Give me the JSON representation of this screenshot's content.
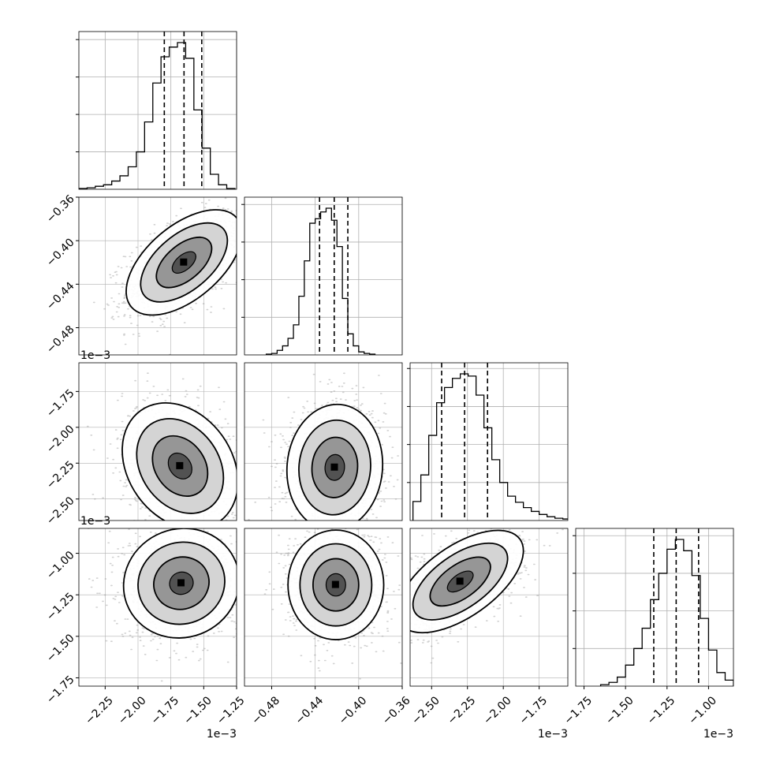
{
  "chart_data": {
    "type": "corner",
    "grid": true,
    "colors": {
      "hist_line": "#000000",
      "contour": "#000000",
      "quantile": "#000000",
      "grid": "#b0b0b0",
      "frame": "#000000",
      "points": "#9a9a9a"
    },
    "params": [
      {
        "range": [
          -2.45,
          -1.25
        ],
        "ticks": [
          -2.25,
          -2.0,
          -1.75,
          -1.5,
          -1.25
        ],
        "tick_labels": [
          "−2.25",
          "−2.00",
          "−1.75",
          "−1.50",
          "−1.25"
        ],
        "offset_label": "1e−3",
        "quantiles": [
          -1.8,
          -1.65,
          -1.515
        ],
        "hist_edges": [
          -2.45,
          -2.3875,
          -2.325,
          -2.2625,
          -2.2,
          -2.1375,
          -2.075,
          -2.0125,
          -1.95,
          -1.8875,
          -1.825,
          -1.7625,
          -1.7,
          -1.6375,
          -1.575,
          -1.5125,
          -1.45,
          -1.3875,
          -1.325,
          -1.2625
        ],
        "hist_counts": [
          1,
          2,
          4,
          6,
          11,
          18,
          30,
          50,
          90,
          142,
          177,
          190,
          196,
          175,
          106,
          55,
          20,
          6,
          1
        ]
      },
      {
        "range": [
          -0.505,
          -0.36
        ],
        "ticks": [
          -0.48,
          -0.44,
          -0.4,
          -0.36
        ],
        "tick_labels": [
          "−0.48",
          "−0.44",
          "−0.40",
          "−0.36"
        ],
        "offset_label": "",
        "quantiles": [
          -0.436,
          -0.4225,
          -0.41
        ],
        "hist_edges": [
          -0.485,
          -0.48,
          -0.475,
          -0.47,
          -0.465,
          -0.46,
          -0.455,
          -0.45,
          -0.445,
          -0.44,
          -0.435,
          -0.43,
          -0.425,
          -0.42,
          -0.415,
          -0.41,
          -0.405,
          -0.4,
          -0.395,
          -0.39,
          -0.385
        ],
        "hist_counts": [
          1,
          2,
          6,
          12,
          22,
          40,
          78,
          125,
          175,
          181,
          190,
          195,
          179,
          144,
          75,
          28,
          12,
          4,
          2,
          1
        ]
      },
      {
        "range": [
          -2.65,
          -1.55
        ],
        "ticks": [
          -2.5,
          -2.25,
          -2.0,
          -1.75
        ],
        "tick_labels": [
          "−2.50",
          "−2.25",
          "−2.00",
          "−1.75"
        ],
        "offset_label": "1e−3",
        "quantiles": [
          -2.43,
          -2.27,
          -2.11
        ],
        "hist_edges": [
          -2.63,
          -2.575,
          -2.52,
          -2.465,
          -2.41,
          -2.355,
          -2.3,
          -2.245,
          -2.19,
          -2.135,
          -2.08,
          -2.025,
          -1.97,
          -1.915,
          -1.86,
          -1.805,
          -1.75,
          -1.695,
          -1.64,
          -1.585,
          -1.53
        ],
        "hist_counts": [
          25,
          60,
          112,
          155,
          175,
          187,
          193,
          190,
          165,
          122,
          80,
          50,
          32,
          24,
          17,
          12,
          8,
          5,
          3,
          2
        ]
      },
      {
        "range": [
          -1.8,
          -0.85
        ],
        "ticks": [
          -1.75,
          -1.5,
          -1.25,
          -1.0
        ],
        "tick_labels": [
          "−1.75",
          "−1.50",
          "−1.25",
          "−1.00"
        ],
        "offset_label": "1e−3",
        "quantiles": [
          -1.33,
          -1.195,
          -1.06
        ],
        "hist_edges": [
          -1.65,
          -1.6,
          -1.55,
          -1.5,
          -1.45,
          -1.4,
          -1.35,
          -1.3,
          -1.25,
          -1.2,
          -1.15,
          -1.1,
          -1.05,
          -1.0,
          -0.95,
          -0.9,
          -0.85
        ],
        "hist_counts": [
          2,
          5,
          12,
          28,
          50,
          77,
          115,
          150,
          182,
          195,
          180,
          147,
          90,
          48,
          18,
          8
        ]
      }
    ],
    "pairs": [
      {
        "x": 0,
        "y": 1,
        "mean": [
          -1.65,
          -0.42
        ],
        "sd": [
          0.2,
          0.022
        ],
        "corr": 0.55
      },
      {
        "x": 0,
        "y": 2,
        "mean": [
          -1.68,
          -2.27
        ],
        "sd": [
          0.2,
          0.2
        ],
        "corr": -0.25
      },
      {
        "x": 1,
        "y": 2,
        "mean": [
          -0.422,
          -2.28
        ],
        "sd": [
          0.02,
          0.2
        ],
        "corr": 0.05
      },
      {
        "x": 0,
        "y": 3,
        "mean": [
          -1.67,
          -1.18
        ],
        "sd": [
          0.2,
          0.15
        ],
        "corr": 0.05
      },
      {
        "x": 1,
        "y": 3,
        "mean": [
          -0.421,
          -1.19
        ],
        "sd": [
          0.02,
          0.15
        ],
        "corr": 0.0
      },
      {
        "x": 2,
        "y": 3,
        "mean": [
          -2.3,
          -1.17
        ],
        "sd": [
          0.2,
          0.14
        ],
        "corr": 0.6
      }
    ]
  }
}
